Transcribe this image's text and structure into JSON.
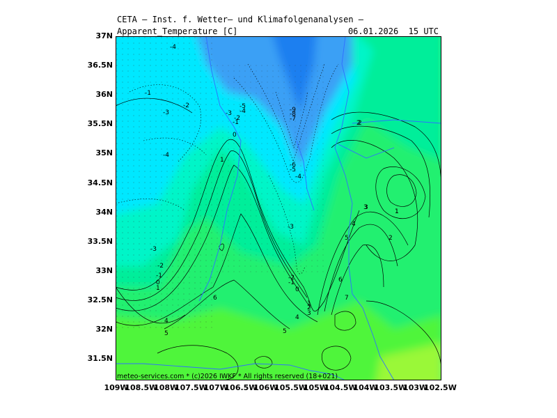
{
  "header": {
    "title": "CETA — Inst. f. Wetter— und Klimafolgenanalysen —",
    "field_label": "Apparent_Temperature [C]",
    "valid_time": "06.01.2026  15 UTC"
  },
  "footer": {
    "copyright": "meteo-services.com * (c)2026 IWKF * All rights reserved (18+021)"
  },
  "axes": {
    "y_ticks": [
      "37N",
      "36.5N",
      "36N",
      "35.5N",
      "35N",
      "34.5N",
      "34N",
      "33.5N",
      "33N",
      "32.5N",
      "32N",
      "31.5N"
    ],
    "x_ticks": [
      "109W",
      "108.5W",
      "108W",
      "107.5W",
      "107W",
      "106.5W",
      "106W",
      "105.5W",
      "105W",
      "104.5W",
      "104W",
      "103.5W",
      "103W",
      "102.5W"
    ]
  },
  "colors": {
    "dark_blue": "#1e7ff0",
    "blue": "#3aa0f5",
    "cyan": "#00e8ff",
    "aqua": "#00f5c8",
    "teal_green": "#00ee9a",
    "green": "#20f070",
    "light_green": "#50f53a",
    "yellow_green": "#9af838",
    "border": "#2f6fff"
  },
  "contour_labels": [
    {
      "t": "-4"
    },
    {
      "t": "-1"
    },
    {
      "t": "-3"
    },
    {
      "t": "-2"
    },
    {
      "t": "-4"
    },
    {
      "t": "-5"
    },
    {
      "t": "-4"
    },
    {
      "t": "-3"
    },
    {
      "t": "-2"
    },
    {
      "t": "-1"
    },
    {
      "t": "0"
    },
    {
      "t": "1"
    },
    {
      "t": "-9"
    },
    {
      "t": "-8"
    },
    {
      "t": "-7"
    },
    {
      "t": "-6"
    },
    {
      "t": "-5"
    },
    {
      "t": "-4"
    },
    {
      "t": "2"
    },
    {
      "t": "3"
    },
    {
      "t": "1"
    },
    {
      "t": "-3"
    },
    {
      "t": "-3"
    },
    {
      "t": "-2"
    },
    {
      "t": "-1"
    },
    {
      "t": "0"
    },
    {
      "t": "1"
    },
    {
      "t": "6"
    },
    {
      "t": "4"
    },
    {
      "t": "5"
    },
    {
      "t": "-2"
    },
    {
      "t": "-1"
    },
    {
      "t": "0"
    },
    {
      "t": "1"
    },
    {
      "t": "2"
    },
    {
      "t": "3"
    },
    {
      "t": "4"
    },
    {
      "t": "5"
    },
    {
      "t": "6"
    },
    {
      "t": "7"
    },
    {
      "t": "5"
    },
    {
      "t": "4"
    },
    {
      "t": "3"
    },
    {
      "t": "1"
    },
    {
      "t": "2"
    },
    {
      "t": "2"
    },
    {
      "t": "6"
    }
  ]
}
